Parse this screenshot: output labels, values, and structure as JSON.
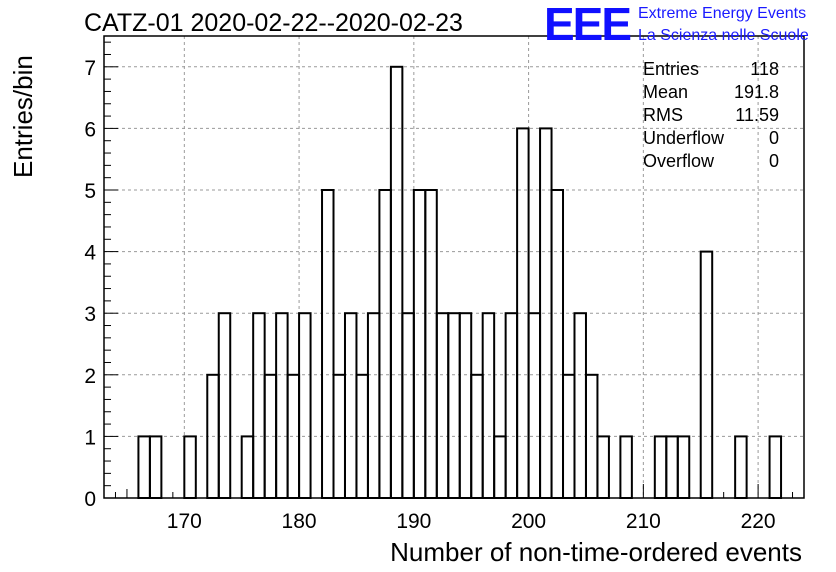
{
  "header": {
    "title": "CATZ-01 2020-02-22--2020-02-23",
    "logo_mark": "EEE",
    "logo_line1": "Extreme Energy Events",
    "logo_line2": "La Scienza nelle Scuole",
    "logo_color": "#1010ff"
  },
  "stats": {
    "rows": [
      {
        "label": "Entries",
        "value": "118"
      },
      {
        "label": "Mean",
        "value": "191.8"
      },
      {
        "label": "RMS",
        "value": "11.59"
      },
      {
        "label": "Underflow",
        "value": "0"
      },
      {
        "label": "Overflow",
        "value": "0"
      }
    ]
  },
  "chart_data": {
    "type": "histogram",
    "title": "CATZ-01 2020-02-22--2020-02-23",
    "xlabel": "Number of non-time-ordered events",
    "ylabel": "Entries/bin",
    "xlim": [
      163,
      224
    ],
    "ylim": [
      0,
      7.5
    ],
    "bin_width": 1,
    "grid": true,
    "x_ticks": [
      170,
      180,
      190,
      200,
      210,
      220
    ],
    "y_ticks": [
      0,
      1,
      2,
      3,
      4,
      5,
      6,
      7
    ],
    "bins": [
      {
        "x": 166,
        "count": 1
      },
      {
        "x": 167,
        "count": 1
      },
      {
        "x": 170,
        "count": 1
      },
      {
        "x": 172,
        "count": 2
      },
      {
        "x": 173,
        "count": 3
      },
      {
        "x": 175,
        "count": 1
      },
      {
        "x": 176,
        "count": 3
      },
      {
        "x": 177,
        "count": 2
      },
      {
        "x": 178,
        "count": 3
      },
      {
        "x": 179,
        "count": 2
      },
      {
        "x": 180,
        "count": 3
      },
      {
        "x": 182,
        "count": 5
      },
      {
        "x": 183,
        "count": 2
      },
      {
        "x": 184,
        "count": 3
      },
      {
        "x": 185,
        "count": 2
      },
      {
        "x": 186,
        "count": 3
      },
      {
        "x": 187,
        "count": 5
      },
      {
        "x": 188,
        "count": 7
      },
      {
        "x": 189,
        "count": 3
      },
      {
        "x": 190,
        "count": 5
      },
      {
        "x": 191,
        "count": 5
      },
      {
        "x": 192,
        "count": 3
      },
      {
        "x": 193,
        "count": 3
      },
      {
        "x": 194,
        "count": 3
      },
      {
        "x": 195,
        "count": 2
      },
      {
        "x": 196,
        "count": 3
      },
      {
        "x": 197,
        "count": 1
      },
      {
        "x": 198,
        "count": 3
      },
      {
        "x": 199,
        "count": 6
      },
      {
        "x": 200,
        "count": 3
      },
      {
        "x": 201,
        "count": 6
      },
      {
        "x": 202,
        "count": 5
      },
      {
        "x": 203,
        "count": 2
      },
      {
        "x": 204,
        "count": 3
      },
      {
        "x": 205,
        "count": 2
      },
      {
        "x": 206,
        "count": 1
      },
      {
        "x": 208,
        "count": 1
      },
      {
        "x": 211,
        "count": 1
      },
      {
        "x": 212,
        "count": 1
      },
      {
        "x": 213,
        "count": 1
      },
      {
        "x": 215,
        "count": 4
      },
      {
        "x": 218,
        "count": 1
      },
      {
        "x": 221,
        "count": 1
      }
    ]
  }
}
